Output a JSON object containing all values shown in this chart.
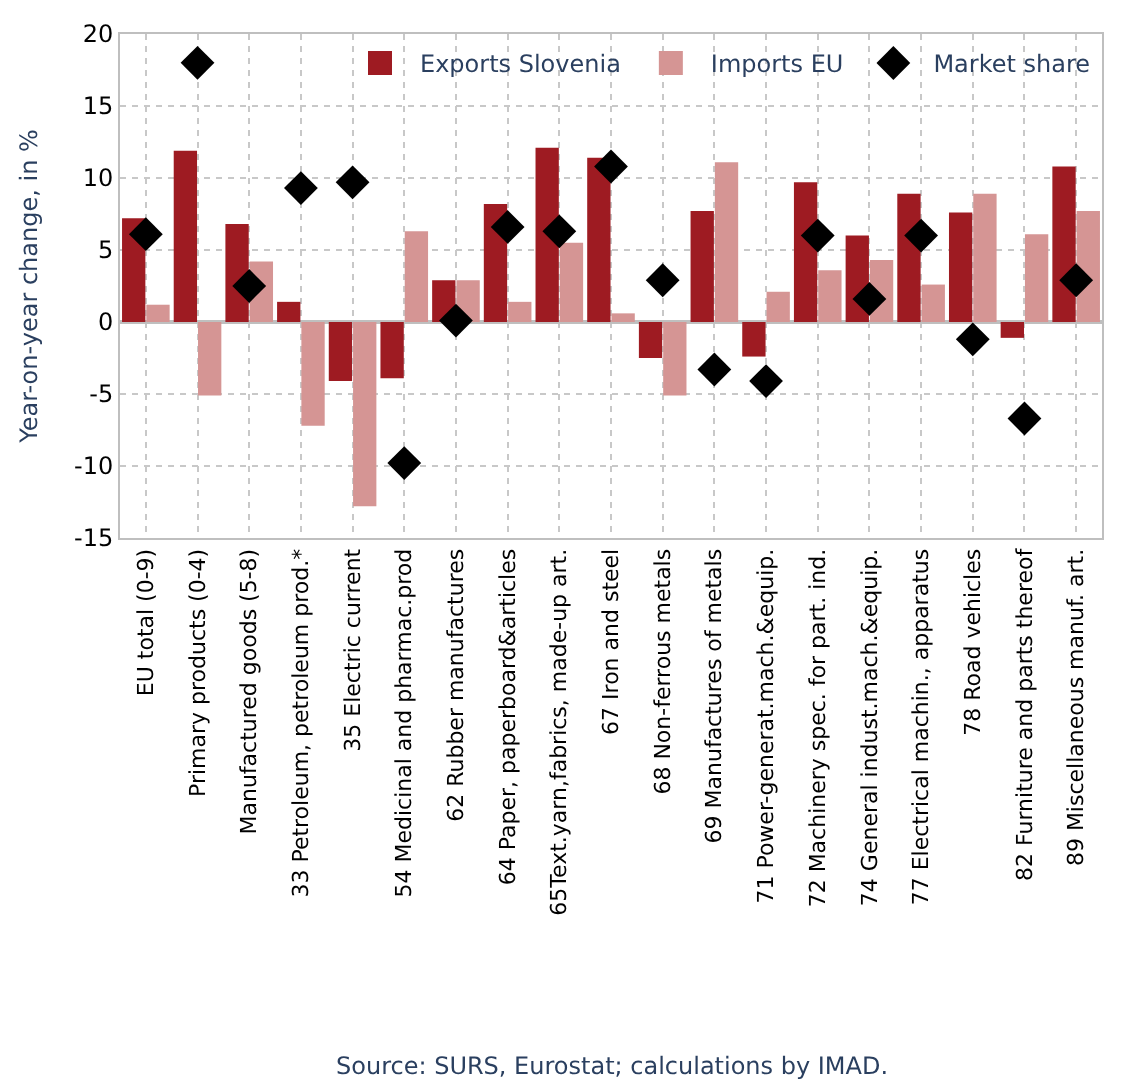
{
  "chart_data": {
    "type": "bar",
    "ylabel": "Year-on-year change, in %",
    "categories": [
      "EU total (0-9)",
      "Primary products (0-4)",
      "Manufactured goods (5-8)",
      "33 Petroleum, petroleum prod.*",
      "35 Electric current",
      "54 Medicinal and pharmac.prod",
      "62 Rubber manufactures",
      "64 Paper, paperboard&articles",
      "65Text.yarn,fabrics, made-up art.",
      "67 Iron and steel",
      "68 Non-ferrous metals",
      "69 Manufactures of metals",
      "71 Power-generat.mach.&equip.",
      "72 Machinery spec. for part. ind.",
      "74 General indust.mach.&equip.",
      "77 Electrical machin., apparatus",
      "78 Road vehicles",
      "82 Furniture and parts thereof",
      "89 Miscellaneous manuf. art."
    ],
    "series": [
      {
        "name": "Exports Slovenia",
        "color": "#9e1b22",
        "values": [
          7.2,
          11.9,
          6.8,
          1.4,
          -4.1,
          -3.9,
          2.9,
          8.2,
          12.1,
          11.4,
          -2.5,
          7.7,
          -2.4,
          9.7,
          6.0,
          8.9,
          7.6,
          -1.1,
          10.8
        ]
      },
      {
        "name": "Imports EU",
        "color": "#d59594",
        "values": [
          1.2,
          -5.1,
          4.2,
          -7.2,
          -12.8,
          6.3,
          2.9,
          1.4,
          5.5,
          0.6,
          -5.1,
          11.1,
          2.1,
          3.6,
          4.3,
          2.6,
          8.9,
          6.1,
          7.7
        ]
      },
      {
        "name": "Market share",
        "type": "scatter",
        "marker": "diamond",
        "color": "#000000",
        "values": [
          6.1,
          18.0,
          2.5,
          9.3,
          9.7,
          -9.8,
          0.1,
          6.6,
          6.3,
          10.8,
          2.9,
          -3.3,
          -4.1,
          6.0,
          1.6,
          6.0,
          -1.2,
          -6.7,
          2.9
        ]
      }
    ],
    "ylim": [
      -15,
      20
    ],
    "yticks": [
      -15,
      -10,
      -5,
      0,
      5,
      10,
      15,
      20
    ],
    "grid": true,
    "legend": "top right",
    "annotations": [
      "Source: SURS, Eurostat; calculations by IMAD."
    ]
  }
}
